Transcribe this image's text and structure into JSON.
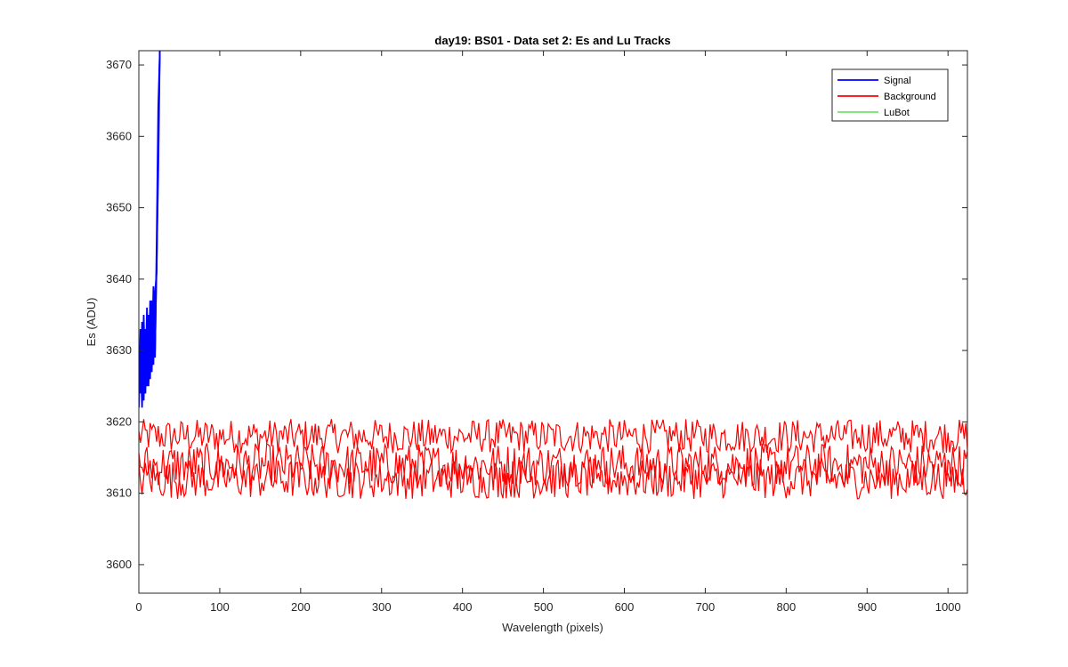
{
  "chart_data": {
    "type": "line",
    "title": "day19: BS01 - Data set 2: Es and Lu Tracks",
    "xlabel": "Wavelength (pixels)",
    "ylabel": "Es (ADU)",
    "xlim": [
      0,
      1024
    ],
    "ylim": [
      3596,
      3672
    ],
    "xticks": [
      0,
      100,
      200,
      300,
      400,
      500,
      600,
      700,
      800,
      900,
      1000
    ],
    "yticks": [
      3600,
      3610,
      3620,
      3630,
      3640,
      3650,
      3660,
      3670
    ],
    "grid": false,
    "legend_position": "top-right",
    "series": [
      {
        "name": "Signal",
        "color": "#0000ff",
        "x": [
          0,
          2,
          4,
          6,
          8,
          10,
          12,
          14,
          16,
          18,
          20,
          22,
          24,
          26
        ],
        "y": [
          3622,
          3633,
          3625,
          3635,
          3624,
          3636,
          3626,
          3637,
          3627,
          3639,
          3630,
          3642,
          3655,
          3672
        ],
        "note_tracks": [
          {
            "x": [
              0,
              2,
              4,
              6,
              8,
              10,
              12,
              14,
              16,
              18,
              20,
              22,
              24,
              26
            ],
            "y": [
              3622,
              3633,
              3625,
              3635,
              3624,
              3636,
              3626,
              3637,
              3627,
              3639,
              3630,
              3642,
              3655,
              3672
            ]
          },
          {
            "x": [
              0,
              2,
              4,
              6,
              8,
              10,
              12,
              14,
              16,
              18,
              20,
              22,
              24,
              26
            ],
            "y": [
              3627,
              3624,
              3634,
              3623,
              3633,
              3625,
              3635,
              3626,
              3637,
              3628,
              3638,
              3641,
              3660,
              3672
            ]
          },
          {
            "x": [
              0,
              2,
              4,
              6,
              8,
              10,
              12,
              14,
              16,
              18,
              20,
              22,
              24,
              26
            ],
            "y": [
              3624,
              3630,
              3622,
              3632,
              3624,
              3631,
              3625,
              3634,
              3627,
              3636,
              3629,
              3645,
              3664,
              3672
            ]
          }
        ]
      },
      {
        "name": "Background",
        "color": "#ff0000",
        "x_start": 0,
        "x_end": 1024,
        "tracks": [
          {
            "center": 3618,
            "amplitude": 2.4
          },
          {
            "center": 3614,
            "amplitude": 3.0
          },
          {
            "center": 3612,
            "amplitude": 2.8
          }
        ]
      },
      {
        "name": "LuBot",
        "color": "#00cc00",
        "x": [],
        "y": []
      }
    ]
  }
}
